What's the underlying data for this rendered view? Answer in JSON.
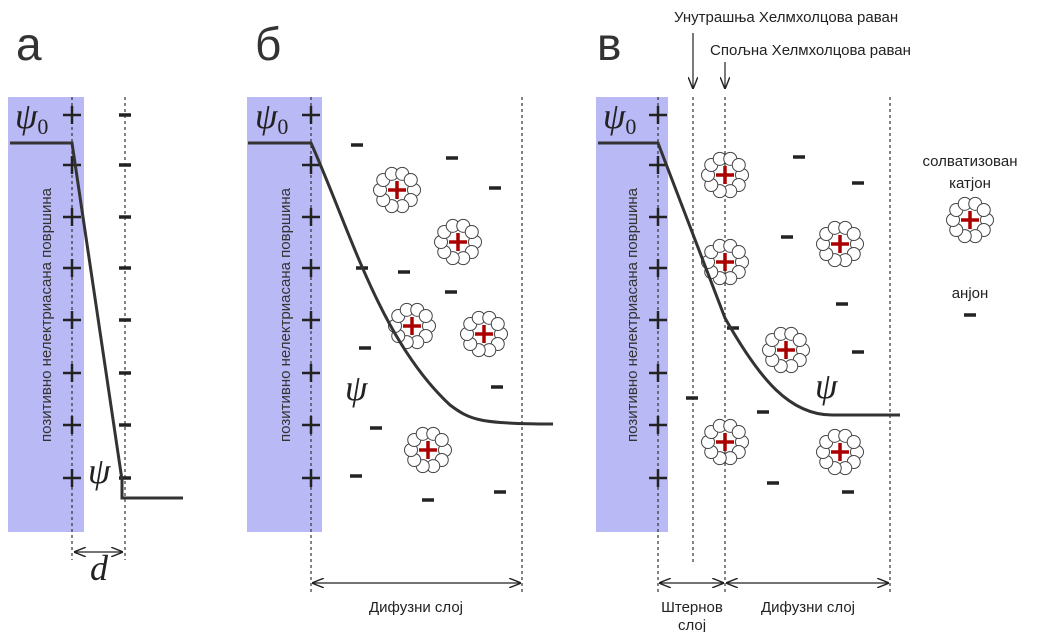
{
  "panels": [
    {
      "letter": "а",
      "surface": "позитивно нелектриасана површина",
      "psi0": {
        "symbol": "ψ",
        "sub": "0"
      },
      "psi": "ψ",
      "distance": "d"
    },
    {
      "letter": "б",
      "surface": "позитивно нелектриасана површина",
      "psi0": {
        "symbol": "ψ",
        "sub": "0"
      },
      "psi": "ψ",
      "layer": "Дифузни слој"
    },
    {
      "letter": "в",
      "surface": "позитивно нелектриасана површина",
      "psi0": {
        "symbol": "ψ",
        "sub": "0"
      },
      "psi": "ψ",
      "inner_plane": "Унутрашња Хелмхолцова раван",
      "outer_plane": "Спољна Хелмхолцова раван",
      "stern_layer": [
        "Штернов",
        "слој"
      ],
      "layer": "Дифузни слој"
    }
  ],
  "legend": {
    "cation": [
      "солватизован",
      "катјон"
    ],
    "anion": "анјон"
  }
}
